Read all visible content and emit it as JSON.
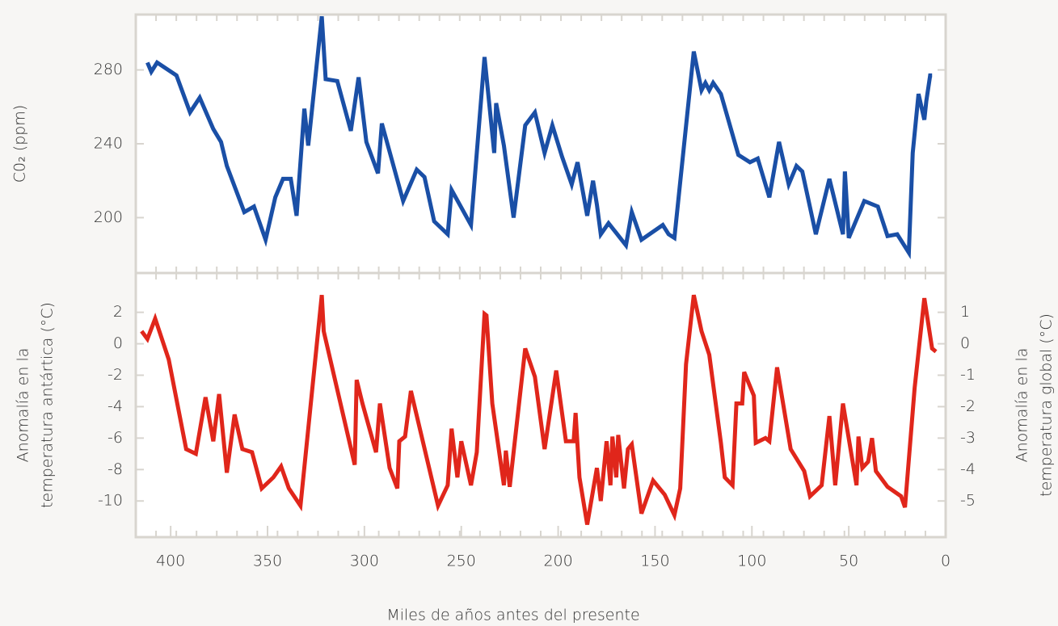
{
  "chart_data": [
    {
      "type": "line",
      "ylabel": "C0₂ (ppm)",
      "xlim": [
        418,
        0
      ],
      "ylim": [
        170,
        310
      ],
      "yticks": [
        200,
        240,
        280
      ],
      "series": [
        {
          "name": "CO2",
          "color": "#1a4fa6",
          "x": [
            412,
            410,
            407,
            397,
            390,
            385,
            378,
            374,
            371,
            362,
            357,
            351,
            346,
            342,
            338,
            335,
            331,
            329,
            322,
            320,
            314,
            307,
            303,
            299,
            293,
            291,
            280,
            273,
            269,
            264,
            257,
            255,
            245,
            238,
            233,
            232,
            228,
            223,
            217,
            212,
            207,
            203,
            198,
            193,
            190,
            185,
            182,
            180,
            178,
            174,
            165,
            162,
            157,
            146,
            143,
            140,
            130,
            126,
            124,
            122,
            120,
            116,
            107,
            101,
            97,
            91,
            86,
            81,
            77,
            74,
            67,
            60,
            53,
            52,
            50,
            42,
            35,
            30,
            25,
            19,
            17,
            14,
            11,
            10,
            8,
            7
          ],
          "values": [
            284,
            279,
            284,
            277,
            257,
            265,
            248,
            241,
            228,
            203,
            206,
            188,
            211,
            221,
            221,
            201,
            259,
            239,
            309,
            275,
            274,
            247,
            276,
            241,
            224,
            251,
            209,
            226,
            222,
            198,
            191,
            215,
            196,
            287,
            235,
            262,
            239,
            200,
            250,
            257,
            235,
            250,
            233,
            218,
            230,
            201,
            220,
            207,
            191,
            197,
            185,
            203,
            188,
            196,
            191,
            189,
            290,
            269,
            273,
            269,
            273,
            267,
            234,
            230,
            232,
            211,
            241,
            218,
            228,
            225,
            191,
            221,
            191,
            225,
            189,
            209,
            206,
            190,
            191,
            181,
            235,
            267,
            253,
            263,
            277,
            277
          ]
        }
      ]
    },
    {
      "type": "line",
      "ylabel": [
        "Anomalía en la",
        "temperatura antártica (°C)"
      ],
      "y2label": [
        "Anomalía en la",
        "temperatura global (°C)"
      ],
      "xlabel": "Miles de años antes del presente",
      "xlim": [
        418,
        0
      ],
      "xticks": [
        400,
        350,
        300,
        250,
        200,
        150,
        100,
        50,
        0
      ],
      "ylim": [
        -12.3,
        4.5
      ],
      "yticks": [
        -10,
        -8,
        -6,
        -4,
        -2,
        0,
        2
      ],
      "y2lim": [
        -6.15,
        2.25
      ],
      "y2ticks": [
        -5,
        -4,
        -3,
        -2,
        -1,
        0,
        1
      ],
      "series": [
        {
          "name": "Temperatura",
          "color": "#e0261b",
          "x": [
            415,
            412,
            408,
            401,
            392,
            387,
            382,
            378,
            375,
            371,
            367,
            363,
            358,
            353,
            347,
            343,
            339,
            333,
            322,
            321,
            305,
            304,
            301,
            294,
            292,
            287,
            283,
            282,
            279,
            276,
            262,
            257,
            255,
            252,
            250,
            245,
            242,
            238,
            237,
            234,
            228,
            227,
            225,
            217,
            212,
            207,
            201,
            196,
            192,
            191,
            189,
            185,
            180,
            178,
            175,
            173,
            172,
            170,
            169,
            166,
            164,
            162,
            157,
            151,
            145,
            140,
            137,
            134,
            130,
            126,
            122,
            116,
            114,
            110,
            108,
            105,
            104,
            99,
            98,
            93,
            91,
            87,
            80,
            73,
            70,
            64,
            60,
            57,
            53,
            46,
            45,
            43,
            40,
            38,
            36,
            30,
            23,
            21,
            16,
            11,
            7,
            5
          ],
          "values": [
            0.8,
            0.3,
            1.6,
            -1.0,
            -6.7,
            -7.0,
            -3.4,
            -6.2,
            -3.2,
            -8.2,
            -4.5,
            -6.7,
            -6.9,
            -9.2,
            -8.5,
            -7.8,
            -9.2,
            -10.3,
            3.1,
            0.8,
            -7.7,
            -2.3,
            -3.8,
            -6.9,
            -3.8,
            -7.9,
            -9.2,
            -6.2,
            -5.9,
            -3.0,
            -10.3,
            -9.0,
            -5.4,
            -8.5,
            -6.2,
            -9.0,
            -6.9,
            1.9,
            1.8,
            -3.8,
            -9.0,
            -6.8,
            -9.1,
            -0.3,
            -2.1,
            -6.7,
            -1.7,
            -6.2,
            -6.2,
            -4.4,
            -8.5,
            -11.5,
            -7.9,
            -10.0,
            -6.2,
            -9.0,
            -5.9,
            -8.5,
            -5.8,
            -9.2,
            -6.7,
            -6.4,
            -10.8,
            -8.7,
            -9.6,
            -10.9,
            -9.2,
            -1.3,
            3.1,
            0.8,
            -0.7,
            -6.3,
            -8.5,
            -9.0,
            -3.8,
            -3.8,
            -1.8,
            -3.3,
            -6.3,
            -6.0,
            -6.2,
            -1.5,
            -6.7,
            -8.1,
            -9.7,
            -9.0,
            -4.6,
            -9.0,
            -3.8,
            -9.0,
            -5.9,
            -7.9,
            -7.5,
            -6.0,
            -8.1,
            -9.1,
            -9.7,
            -10.4,
            -2.8,
            2.9,
            -0.3,
            -0.5
          ]
        }
      ]
    }
  ]
}
